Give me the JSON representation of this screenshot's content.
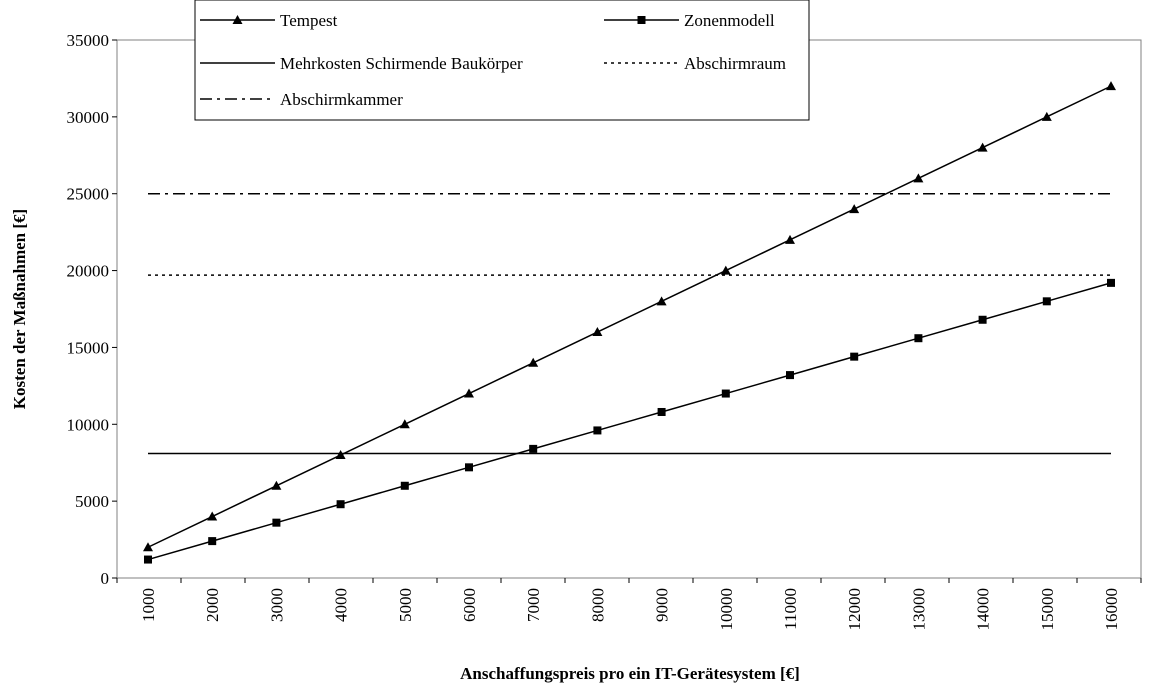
{
  "chart_data": {
    "type": "line",
    "title": "",
    "xlabel": "Anschaffungspreis pro ein IT-Gerätesystem [€]",
    "ylabel": "Kosten der Maßnahmen [€]",
    "categories": [
      "1000",
      "2000",
      "3000",
      "4000",
      "5000",
      "6000",
      "7000",
      "8000",
      "9000",
      "10000",
      "11000",
      "12000",
      "13000",
      "14000",
      "15000",
      "16000"
    ],
    "y_ticks": [
      "0",
      "5000",
      "10000",
      "15000",
      "20000",
      "25000",
      "30000",
      "35000"
    ],
    "ylim": [
      0,
      35000
    ],
    "grid": false,
    "legend_position": "top",
    "series": [
      {
        "name": "Tempest",
        "style": "solid",
        "marker": "triangle",
        "values": [
          2000,
          4000,
          6000,
          8000,
          10000,
          12000,
          14000,
          16000,
          18000,
          20000,
          22000,
          24000,
          26000,
          28000,
          30000,
          32000
        ]
      },
      {
        "name": "Zonenmodell",
        "style": "solid",
        "marker": "square",
        "values": [
          1200,
          2400,
          3600,
          4800,
          6000,
          7200,
          8400,
          9600,
          10800,
          12000,
          13200,
          14400,
          15600,
          16800,
          18000,
          19200
        ]
      },
      {
        "name": "Mehrkosten Schirmende Baukörper",
        "style": "solid",
        "marker": "none",
        "values": [
          8100,
          8100,
          8100,
          8100,
          8100,
          8100,
          8100,
          8100,
          8100,
          8100,
          8100,
          8100,
          8100,
          8100,
          8100,
          8100
        ]
      },
      {
        "name": "Abschirmraum",
        "style": "dotted",
        "marker": "none",
        "values": [
          19700,
          19700,
          19700,
          19700,
          19700,
          19700,
          19700,
          19700,
          19700,
          19700,
          19700,
          19700,
          19700,
          19700,
          19700,
          19700
        ]
      },
      {
        "name": "Abschirmkammer",
        "style": "dashdot",
        "marker": "none",
        "values": [
          25000,
          25000,
          25000,
          25000,
          25000,
          25000,
          25000,
          25000,
          25000,
          25000,
          25000,
          25000,
          25000,
          25000,
          25000,
          25000
        ]
      }
    ]
  }
}
